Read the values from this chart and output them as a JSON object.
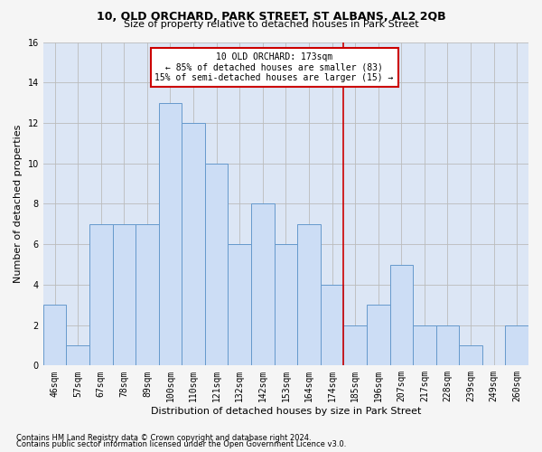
{
  "title": "10, OLD ORCHARD, PARK STREET, ST ALBANS, AL2 2QB",
  "subtitle": "Size of property relative to detached houses in Park Street",
  "xlabel": "Distribution of detached houses by size in Park Street",
  "ylabel": "Number of detached properties",
  "footnote1": "Contains HM Land Registry data © Crown copyright and database right 2024.",
  "footnote2": "Contains public sector information licensed under the Open Government Licence v3.0.",
  "bin_labels": [
    "46sqm",
    "57sqm",
    "67sqm",
    "78sqm",
    "89sqm",
    "100sqm",
    "110sqm",
    "121sqm",
    "132sqm",
    "142sqm",
    "153sqm",
    "164sqm",
    "174sqm",
    "185sqm",
    "196sqm",
    "207sqm",
    "217sqm",
    "228sqm",
    "239sqm",
    "249sqm",
    "260sqm"
  ],
  "bar_values": [
    3,
    1,
    7,
    7,
    7,
    13,
    12,
    10,
    6,
    8,
    6,
    7,
    4,
    2,
    3,
    5,
    2,
    2,
    1,
    0,
    2
  ],
  "bar_color": "#ccddf5",
  "bar_edge_color": "#6699cc",
  "grid_color": "#bbbbbb",
  "bg_color": "#dce6f5",
  "fig_bg_color": "#f5f5f5",
  "annotation_text": "10 OLD ORCHARD: 173sqm\n← 85% of detached houses are smaller (83)\n15% of semi-detached houses are larger (15) →",
  "annotation_box_color": "#ffffff",
  "annotation_box_edge": "#cc0000",
  "vline_color": "#cc0000",
  "vline_x": 12.5,
  "ylim": [
    0,
    16
  ],
  "yticks": [
    0,
    2,
    4,
    6,
    8,
    10,
    12,
    14,
    16
  ],
  "title_fontsize": 9,
  "subtitle_fontsize": 8,
  "ylabel_fontsize": 8,
  "xlabel_fontsize": 8,
  "tick_fontsize": 7,
  "annot_fontsize": 7,
  "footnote_fontsize": 6
}
